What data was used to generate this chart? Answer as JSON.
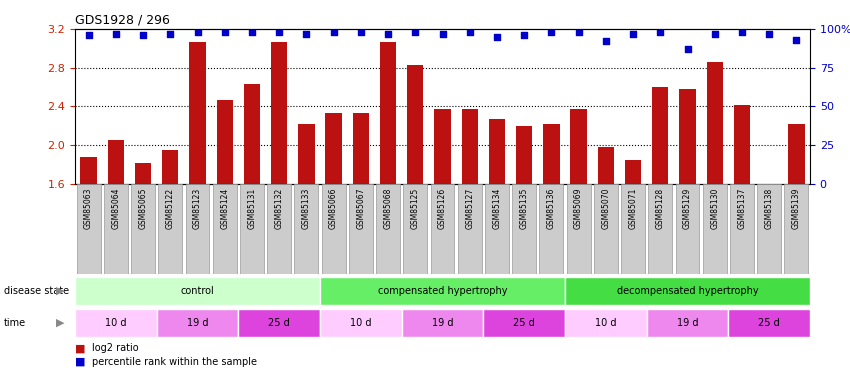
{
  "title": "GDS1928 / 296",
  "samples": [
    "GSM85063",
    "GSM85064",
    "GSM85065",
    "GSM85122",
    "GSM85123",
    "GSM85124",
    "GSM85131",
    "GSM85132",
    "GSM85133",
    "GSM85066",
    "GSM85067",
    "GSM85068",
    "GSM85125",
    "GSM85126",
    "GSM85127",
    "GSM85134",
    "GSM85135",
    "GSM85136",
    "GSM85069",
    "GSM85070",
    "GSM85071",
    "GSM85128",
    "GSM85129",
    "GSM85130",
    "GSM85137",
    "GSM85138",
    "GSM85139"
  ],
  "log2_ratio": [
    1.88,
    2.05,
    1.82,
    1.95,
    3.07,
    2.47,
    2.63,
    3.07,
    2.22,
    2.33,
    2.33,
    3.07,
    2.83,
    2.37,
    2.37,
    2.27,
    2.2,
    2.22,
    2.37,
    1.98,
    1.85,
    2.6,
    2.58,
    2.86,
    2.42,
    1.6,
    2.22
  ],
  "percentile": [
    96,
    97,
    96,
    97,
    98,
    98,
    98,
    98,
    97,
    98,
    98,
    97,
    98,
    97,
    98,
    95,
    96,
    98,
    98,
    92,
    97,
    98,
    87,
    97,
    98,
    97,
    93
  ],
  "ylim_left": [
    1.6,
    3.2
  ],
  "ylim_right": [
    0,
    100
  ],
  "yticks_left": [
    1.6,
    2.0,
    2.4,
    2.8,
    3.2
  ],
  "yticks_right": [
    0,
    25,
    50,
    75,
    100
  ],
  "bar_color": "#bb1111",
  "dot_color": "#0000cc",
  "disease_groups": [
    {
      "label": "control",
      "start": 0,
      "end": 9,
      "color": "#ccffcc"
    },
    {
      "label": "compensated hypertrophy",
      "start": 9,
      "end": 18,
      "color": "#66ee66"
    },
    {
      "label": "decompensated hypertrophy",
      "start": 18,
      "end": 27,
      "color": "#44dd44"
    }
  ],
  "time_groups": [
    {
      "label": "10 d",
      "start": 0,
      "end": 3,
      "color": "#ffccff"
    },
    {
      "label": "19 d",
      "start": 3,
      "end": 6,
      "color": "#ee88ee"
    },
    {
      "label": "25 d",
      "start": 6,
      "end": 9,
      "color": "#dd44dd"
    },
    {
      "label": "10 d",
      "start": 9,
      "end": 12,
      "color": "#ffccff"
    },
    {
      "label": "19 d",
      "start": 12,
      "end": 15,
      "color": "#ee88ee"
    },
    {
      "label": "25 d",
      "start": 15,
      "end": 18,
      "color": "#dd44dd"
    },
    {
      "label": "10 d",
      "start": 18,
      "end": 21,
      "color": "#ffccff"
    },
    {
      "label": "19 d",
      "start": 21,
      "end": 24,
      "color": "#ee88ee"
    },
    {
      "label": "25 d",
      "start": 24,
      "end": 27,
      "color": "#dd44dd"
    }
  ],
  "left_tick_color": "#cc2200",
  "right_tick_color": "#0000cc",
  "sample_box_color": "#cccccc",
  "sample_box_edge": "#999999"
}
